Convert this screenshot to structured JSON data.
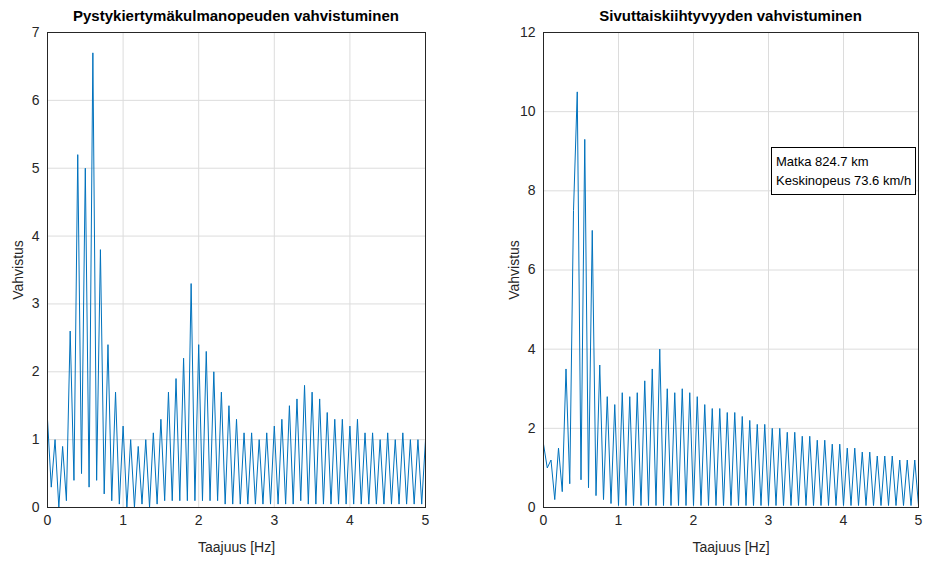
{
  "chart_data": [
    {
      "type": "line",
      "title": "Pystykiertymäkulmanopeuden vahvistuminen",
      "x_label": "Taajuus [Hz]",
      "y_label": "Vahvistus",
      "x": [
        0,
        0.05,
        0.1,
        0.15,
        0.2,
        0.25,
        0.3,
        0.35,
        0.4,
        0.45,
        0.5,
        0.55,
        0.6,
        0.65,
        0.7,
        0.75,
        0.8,
        0.85,
        0.9,
        0.95,
        1,
        1.05,
        1.1,
        1.15,
        1.2,
        1.25,
        1.3,
        1.35,
        1.4,
        1.45,
        1.5,
        1.55,
        1.6,
        1.65,
        1.7,
        1.75,
        1.8,
        1.85,
        1.9,
        1.95,
        2,
        2.05,
        2.1,
        2.15,
        2.2,
        2.25,
        2.3,
        2.35,
        2.4,
        2.45,
        2.5,
        2.55,
        2.6,
        2.65,
        2.7,
        2.75,
        2.8,
        2.85,
        2.9,
        2.95,
        3,
        3.05,
        3.1,
        3.15,
        3.2,
        3.25,
        3.3,
        3.35,
        3.4,
        3.45,
        3.5,
        3.55,
        3.6,
        3.65,
        3.7,
        3.75,
        3.8,
        3.85,
        3.9,
        3.95,
        4,
        4.05,
        4.1,
        4.15,
        4.2,
        4.25,
        4.3,
        4.35,
        4.4,
        4.45,
        4.5,
        4.55,
        4.6,
        4.65,
        4.7,
        4.75,
        4.8,
        4.85,
        4.9,
        4.95,
        5
      ],
      "values": [
        1.3,
        0.3,
        1.0,
        0.0,
        0.9,
        0.1,
        2.6,
        0.4,
        5.2,
        0.5,
        5.0,
        0.3,
        6.7,
        0.4,
        3.8,
        0.2,
        2.4,
        0.1,
        1.7,
        0.05,
        1.2,
        0.0,
        1.0,
        0.0,
        0.9,
        0.05,
        1.0,
        0.0,
        1.1,
        0.05,
        1.3,
        0.1,
        1.7,
        0.1,
        1.9,
        0.1,
        2.2,
        0.1,
        3.3,
        0.1,
        2.4,
        0.1,
        2.3,
        0.1,
        2.0,
        0.1,
        1.7,
        0.05,
        1.5,
        0.05,
        1.3,
        0.05,
        1.1,
        0.05,
        1.1,
        0.05,
        1.0,
        0.05,
        1.1,
        0.05,
        1.2,
        0.05,
        1.3,
        0.05,
        1.5,
        0.05,
        1.6,
        0.1,
        1.8,
        0.05,
        1.7,
        0.05,
        1.6,
        0.05,
        1.4,
        0.05,
        1.3,
        0.05,
        1.3,
        0.05,
        1.2,
        0.05,
        1.3,
        0.05,
        1.1,
        0.05,
        1.1,
        0.05,
        1.0,
        0.05,
        1.1,
        0.05,
        1.0,
        0.05,
        1.1,
        0.05,
        1.0,
        0.05,
        1.0,
        0.05,
        1.0
      ],
      "color": "#0072bd",
      "xlim": [
        0,
        5
      ],
      "xticks": [
        0,
        1,
        2,
        3,
        4,
        5
      ],
      "ylim": [
        0,
        7
      ],
      "yticks": [
        0,
        1,
        2,
        3,
        4,
        5,
        6,
        7
      ],
      "grid": true
    },
    {
      "type": "line",
      "title": "Sivuttaiskiihtyvyyden vahvistuminen",
      "x_label": "Taajuus [Hz]",
      "y_label": "Vahvistus",
      "x": [
        0,
        0.05,
        0.1,
        0.15,
        0.2,
        0.25,
        0.3,
        0.35,
        0.4,
        0.45,
        0.5,
        0.55,
        0.6,
        0.65,
        0.7,
        0.75,
        0.8,
        0.85,
        0.9,
        0.95,
        1,
        1.05,
        1.1,
        1.15,
        1.2,
        1.25,
        1.3,
        1.35,
        1.4,
        1.45,
        1.5,
        1.55,
        1.6,
        1.65,
        1.7,
        1.75,
        1.8,
        1.85,
        1.9,
        1.95,
        2,
        2.05,
        2.1,
        2.15,
        2.2,
        2.25,
        2.3,
        2.35,
        2.4,
        2.45,
        2.5,
        2.55,
        2.6,
        2.65,
        2.7,
        2.75,
        2.8,
        2.85,
        2.9,
        2.95,
        3,
        3.05,
        3.1,
        3.15,
        3.2,
        3.25,
        3.3,
        3.35,
        3.4,
        3.45,
        3.5,
        3.55,
        3.6,
        3.65,
        3.7,
        3.75,
        3.8,
        3.85,
        3.9,
        3.95,
        4,
        4.05,
        4.1,
        4.15,
        4.2,
        4.25,
        4.3,
        4.35,
        4.4,
        4.45,
        4.5,
        4.55,
        4.6,
        4.65,
        4.7,
        4.75,
        4.8,
        4.85,
        4.9,
        4.95,
        5
      ],
      "values": [
        1.6,
        1.0,
        1.2,
        0.2,
        1.5,
        0.4,
        3.5,
        0.6,
        7.5,
        10.5,
        0.7,
        9.3,
        0.5,
        7.0,
        0.3,
        3.6,
        0.2,
        2.8,
        0.1,
        2.6,
        0.05,
        2.9,
        0.05,
        2.8,
        0.05,
        2.9,
        0.05,
        3.2,
        0.05,
        3.5,
        0.05,
        4.0,
        0.05,
        3.0,
        0.05,
        2.9,
        0.05,
        3.0,
        0.05,
        2.9,
        0.05,
        2.8,
        0.05,
        2.6,
        0.05,
        2.5,
        0.05,
        2.5,
        0.05,
        2.4,
        0.05,
        2.4,
        0.05,
        2.3,
        0.05,
        2.2,
        0.05,
        2.1,
        0.05,
        2.1,
        0.05,
        2.0,
        0.05,
        2.0,
        0.05,
        1.9,
        0.05,
        1.9,
        0.05,
        1.8,
        0.05,
        1.8,
        0.05,
        1.7,
        0.05,
        1.7,
        0.05,
        1.6,
        0.05,
        1.6,
        0.05,
        1.5,
        0.05,
        1.5,
        0.05,
        1.4,
        0.05,
        1.4,
        0.05,
        1.3,
        0.05,
        1.3,
        0.05,
        1.3,
        0.05,
        1.2,
        0.05,
        1.2,
        0.05,
        1.2,
        0.05
      ],
      "color": "#0072bd",
      "xlim": [
        0,
        5
      ],
      "xticks": [
        0,
        1,
        2,
        3,
        4,
        5
      ],
      "ylim": [
        0,
        12
      ],
      "yticks": [
        0,
        2,
        4,
        6,
        8,
        10,
        12
      ],
      "grid": true,
      "annotations": [
        "Matka 824.7 km",
        "Keskinopeus 73.6 km/h"
      ]
    }
  ]
}
